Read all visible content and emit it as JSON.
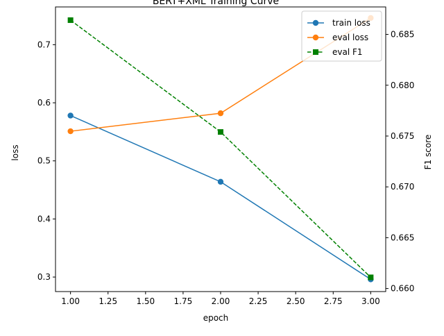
{
  "chart_data": {
    "type": "line",
    "title": "BERT+XML Training Curve",
    "xlabel": "epoch",
    "ylabel": "loss",
    "y2label": "F1 score",
    "xlim": [
      0.9,
      3.1
    ],
    "ylim": [
      0.275,
      0.765
    ],
    "y2lim": [
      0.6597,
      0.6877
    ],
    "x_ticks": [
      "1.00",
      "1.25",
      "1.50",
      "1.75",
      "2.00",
      "2.25",
      "2.50",
      "2.75",
      "3.00"
    ],
    "y_ticks": [
      "0.3",
      "0.4",
      "0.5",
      "0.6",
      "0.7"
    ],
    "y2_ticks": [
      "0.660",
      "0.665",
      "0.670",
      "0.675",
      "0.680",
      "0.685"
    ],
    "grid": false,
    "legend": "upper right",
    "x": [
      1,
      2,
      3
    ],
    "series": [
      {
        "name": "train loss",
        "axis": "left",
        "values": [
          0.578,
          0.464,
          0.296
        ],
        "color": "#1f77b4",
        "marker": "circle",
        "linestyle": "solid"
      },
      {
        "name": "eval loss",
        "axis": "left",
        "values": [
          0.551,
          0.582,
          0.746
        ],
        "color": "#ff7f0e",
        "marker": "circle",
        "linestyle": "solid"
      },
      {
        "name": "eval F1",
        "axis": "right",
        "values": [
          0.6864,
          0.6754,
          0.6611
        ],
        "color": "#008000",
        "marker": "square",
        "linestyle": "dashed"
      }
    ]
  }
}
